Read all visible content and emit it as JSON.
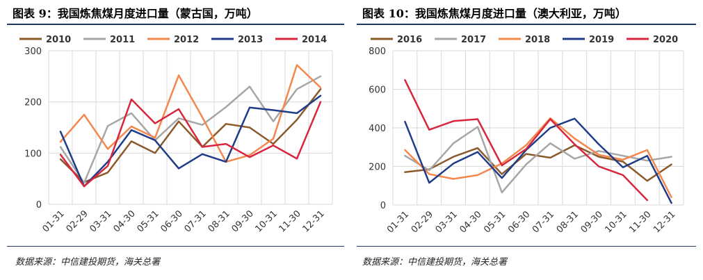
{
  "panels": [
    {
      "title": "图表 9：我国炼焦煤月度进口量（蒙古国，万吨）",
      "source": "数据来源：中信建投期货，海关总署",
      "chart_data": {
        "type": "line",
        "categories": [
          "01-31",
          "02-29",
          "03-31",
          "04-30",
          "05-31",
          "06-30",
          "07-31",
          "08-31",
          "09-30",
          "10-31",
          "11-30",
          "12-31"
        ],
        "ylim": [
          0,
          300
        ],
        "yticks": [
          0,
          100,
          200,
          300
        ],
        "grid": true,
        "legend_position": "top",
        "series": [
          {
            "name": "2010",
            "color": "#8B5A2B",
            "values": [
              88,
              43,
              62,
              123,
              100,
              162,
              112,
              157,
              150,
              118,
              165,
              225
            ]
          },
          {
            "name": "2011",
            "color": "#A6A6A6",
            "values": [
              112,
              42,
              153,
              178,
              125,
              168,
              155,
              190,
              230,
              162,
              225,
              250
            ]
          },
          {
            "name": "2012",
            "color": "#F4874B",
            "values": [
              122,
              175,
              108,
              152,
              130,
              252,
              170,
              83,
              96,
              128,
              272,
              228
            ]
          },
          {
            "name": "2013",
            "color": "#1F3C88",
            "values": [
              142,
              35,
              83,
              145,
              125,
              70,
              98,
              83,
              189,
              184,
              178,
              212
            ]
          },
          {
            "name": "2014",
            "color": "#D7263D",
            "values": [
              97,
              35,
              75,
              205,
              158,
              186,
              112,
              118,
              92,
              115,
              89,
              200
            ]
          }
        ]
      }
    },
    {
      "title": "图表 10：我国炼焦煤月度进口量（澳大利亚，万吨）",
      "source": "数据来源：中信建投期货，海关总署",
      "chart_data": {
        "type": "line",
        "categories": [
          "01-31",
          "02-29",
          "03-31",
          "04-30",
          "05-31",
          "06-30",
          "07-31",
          "08-31",
          "09-30",
          "10-31",
          "11-30",
          "12-31"
        ],
        "ylim": [
          0,
          800
        ],
        "yticks": [
          0,
          200,
          400,
          600,
          800
        ],
        "grid": true,
        "legend_position": "top",
        "series": [
          {
            "name": "2016",
            "color": "#8B5A2B",
            "values": [
              170,
              185,
              250,
              295,
              160,
              265,
              245,
              310,
              250,
              225,
              125,
              210
            ]
          },
          {
            "name": "2017",
            "color": "#A6A6A6",
            "values": [
              255,
              180,
              320,
              405,
              65,
              210,
              320,
              240,
              280,
              255,
              230,
              250
            ]
          },
          {
            "name": "2018",
            "color": "#F4874B",
            "values": [
              285,
              160,
              135,
              155,
              215,
              310,
              450,
              345,
              260,
              235,
              285,
              40
            ]
          },
          {
            "name": "2019",
            "color": "#1F3C88",
            "values": [
              432,
              115,
              215,
              275,
              140,
              285,
              400,
              448,
              315,
              195,
              255,
              10
            ]
          },
          {
            "name": "2020",
            "color": "#D7263D",
            "values": [
              648,
              390,
              435,
              445,
              205,
              290,
              445,
              315,
              200,
              155,
              25,
              null
            ]
          }
        ]
      }
    }
  ]
}
